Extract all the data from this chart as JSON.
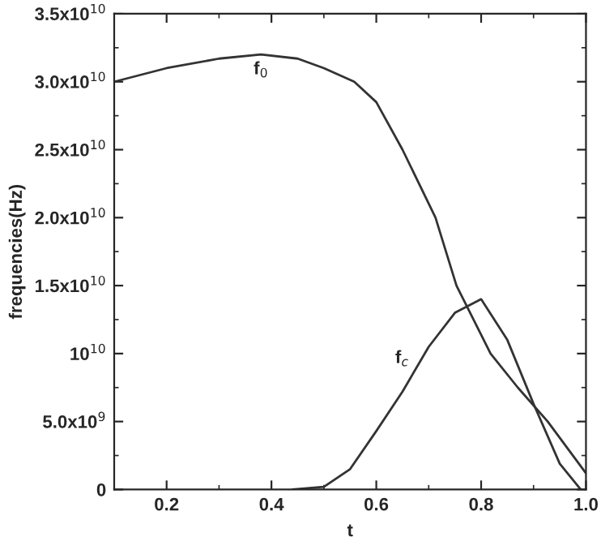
{
  "chart_data": {
    "type": "line",
    "xlabel": "t",
    "ylabel": "frequencies(Hz)",
    "xlim": [
      0.1,
      1.0
    ],
    "xticks": [
      0.2,
      0.4,
      0.6,
      0.8,
      {
        "value": 1.0,
        "label": "1.0"
      }
    ],
    "ylim": [
      0,
      35000000000.0
    ],
    "yticks": [
      {
        "value": 0,
        "label": "0"
      },
      {
        "value": 5000000000.0,
        "label": "5.0x10$^{9}$"
      },
      {
        "value": 10000000000.0,
        "label": "10$^{10}$"
      },
      {
        "value": 15000000000.0,
        "label": "1.5x10$^{10}$"
      },
      {
        "value": 20000000000.0,
        "label": "2.0x10$^{10}$"
      },
      {
        "value": 25000000000.0,
        "label": "2.5x10$^{10}$"
      },
      {
        "value": 30000000000.0,
        "label": "3.0x10$^{10}$"
      },
      {
        "value": 35000000000.0,
        "label": "3.5x10$^{10}$"
      }
    ],
    "grid": false,
    "legend": false,
    "marker": "none",
    "line_style": "solid",
    "series": [
      {
        "name": "f$_{0}$",
        "color": "#333333",
        "x": [
          0.1,
          0.2,
          0.3,
          0.38,
          0.45,
          0.5,
          0.558,
          0.6,
          0.65,
          0.713,
          0.753,
          0.818,
          0.87,
          0.927,
          1.0
        ],
        "values": [
          30000000000.0,
          31000000000.0,
          31700000000.0,
          32000000000.0,
          31700000000.0,
          31000000000.0,
          30000000000.0,
          28500000000.0,
          25000000000.0,
          20000000000.0,
          15000000000.0,
          10000000000.0,
          7500000000.0,
          5000000000.0,
          1200000000.0
        ]
      },
      {
        "name": "f$_{c}$",
        "color": "#333333",
        "x": [
          0.44,
          0.5,
          0.55,
          0.6,
          0.65,
          0.7,
          0.75,
          0.8,
          0.85,
          0.9,
          0.95,
          0.99
        ],
        "values": [
          0,
          200000000.0,
          1500000000.0,
          4300000000.0,
          7200000000.0,
          10500000000.0,
          13000000000.0,
          14000000000.0,
          11000000000.0,
          6300000000.0,
          1900000000.0,
          0
        ]
      }
    ]
  }
}
